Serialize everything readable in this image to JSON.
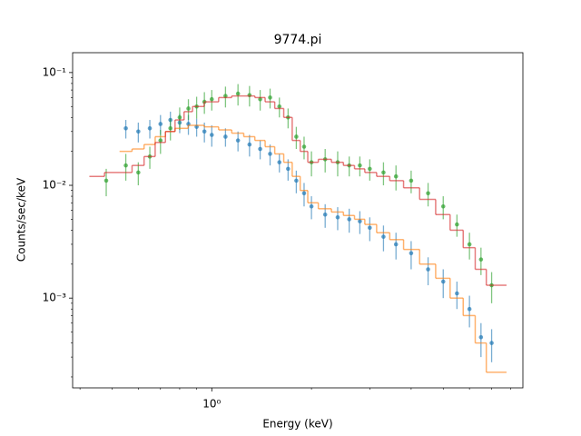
{
  "chart_data": {
    "type": "errorbar-step",
    "title": "9774.pi",
    "x_label": "Energy (keV)",
    "y_label": "Counts/sec/keV",
    "xscale": "log",
    "yscale": "log",
    "xlim": [
      0.38,
      8.7
    ],
    "ylim": [
      0.00016,
      0.15
    ],
    "xticks": [
      {
        "value": 1,
        "label": "10⁰"
      }
    ],
    "yticks": [
      {
        "value": 0.001,
        "label": "10⁻³"
      },
      {
        "value": 0.01,
        "label": "10⁻²"
      },
      {
        "value": 0.1,
        "label": "10⁻¹"
      }
    ],
    "xminorticks": [
      0.4,
      0.5,
      0.6,
      0.7,
      0.8,
      0.9,
      2,
      3,
      4,
      5,
      6,
      7,
      8
    ],
    "yminorticks": [
      0.0002,
      0.0003,
      0.0004,
      0.0005,
      0.0006,
      0.0007,
      0.0008,
      0.0009,
      0.002,
      0.003,
      0.004,
      0.005,
      0.006,
      0.007,
      0.008,
      0.009,
      0.02,
      0.03,
      0.04,
      0.05,
      0.06,
      0.07,
      0.08,
      0.09
    ],
    "series": [
      {
        "kind": "data",
        "color": "#1f77b4",
        "x": [
          0.55,
          0.6,
          0.65,
          0.7,
          0.75,
          0.8,
          0.85,
          0.9,
          0.95,
          1.0,
          1.1,
          1.2,
          1.3,
          1.4,
          1.5,
          1.6,
          1.7,
          1.8,
          1.9,
          2.0,
          2.2,
          2.4,
          2.6,
          2.8,
          3.0,
          3.3,
          3.6,
          4.0,
          4.5,
          5.0,
          5.5,
          6.0,
          6.5,
          7.0
        ],
        "values": [
          0.032,
          0.03,
          0.032,
          0.035,
          0.038,
          0.036,
          0.035,
          0.033,
          0.03,
          0.028,
          0.027,
          0.025,
          0.023,
          0.021,
          0.019,
          0.016,
          0.014,
          0.011,
          0.0085,
          0.0065,
          0.0055,
          0.0052,
          0.005,
          0.0048,
          0.0042,
          0.0035,
          0.003,
          0.0025,
          0.0018,
          0.0014,
          0.0011,
          0.0008,
          0.00045,
          0.0004
        ],
        "errors": [
          0.006,
          0.006,
          0.006,
          0.007,
          0.007,
          0.007,
          0.007,
          0.006,
          0.006,
          0.006,
          0.005,
          0.005,
          0.005,
          0.004,
          0.004,
          0.003,
          0.003,
          0.0025,
          0.002,
          0.0015,
          0.0013,
          0.0012,
          0.0012,
          0.0011,
          0.001,
          0.0009,
          0.0008,
          0.0007,
          0.0005,
          0.0004,
          0.0003,
          0.00025,
          0.00015,
          0.00013
        ]
      },
      {
        "kind": "data",
        "color": "#2ca02c",
        "x": [
          0.48,
          0.55,
          0.6,
          0.65,
          0.7,
          0.75,
          0.8,
          0.85,
          0.9,
          0.95,
          1.0,
          1.1,
          1.2,
          1.3,
          1.4,
          1.5,
          1.6,
          1.7,
          1.8,
          1.9,
          2.0,
          2.2,
          2.4,
          2.6,
          2.8,
          3.0,
          3.3,
          3.6,
          4.0,
          4.5,
          5.0,
          5.5,
          6.0,
          6.5,
          7.0
        ],
        "values": [
          0.011,
          0.015,
          0.013,
          0.018,
          0.025,
          0.032,
          0.04,
          0.048,
          0.05,
          0.055,
          0.058,
          0.062,
          0.065,
          0.063,
          0.058,
          0.06,
          0.05,
          0.04,
          0.027,
          0.022,
          0.016,
          0.017,
          0.016,
          0.015,
          0.015,
          0.014,
          0.013,
          0.012,
          0.011,
          0.0085,
          0.0065,
          0.0045,
          0.003,
          0.0022,
          0.0013
        ],
        "errors": [
          0.003,
          0.004,
          0.003,
          0.004,
          0.006,
          0.007,
          0.009,
          0.01,
          0.011,
          0.012,
          0.012,
          0.013,
          0.014,
          0.013,
          0.012,
          0.012,
          0.01,
          0.008,
          0.006,
          0.005,
          0.004,
          0.004,
          0.004,
          0.003,
          0.003,
          0.003,
          0.003,
          0.003,
          0.0025,
          0.002,
          0.0015,
          0.001,
          0.0008,
          0.0006,
          0.0004
        ]
      },
      {
        "kind": "model",
        "color": "#ff7f0e",
        "x": [
          0.55,
          0.6,
          0.65,
          0.7,
          0.75,
          0.8,
          0.9,
          1.0,
          1.1,
          1.2,
          1.3,
          1.4,
          1.5,
          1.6,
          1.7,
          1.8,
          1.9,
          2.0,
          2.2,
          2.4,
          2.6,
          2.8,
          3.0,
          3.3,
          3.6,
          4.0,
          4.5,
          5.0,
          5.5,
          6.0,
          6.5,
          7.0,
          7.5
        ],
        "values": [
          0.02,
          0.021,
          0.023,
          0.027,
          0.03,
          0.032,
          0.034,
          0.033,
          0.031,
          0.029,
          0.027,
          0.025,
          0.022,
          0.019,
          0.016,
          0.012,
          0.009,
          0.007,
          0.0062,
          0.0058,
          0.0054,
          0.005,
          0.0045,
          0.0038,
          0.0033,
          0.0027,
          0.002,
          0.0015,
          0.001,
          0.0007,
          0.0004,
          0.00022,
          0.00022
        ]
      },
      {
        "kind": "model",
        "color": "#d62728",
        "x": [
          0.45,
          0.5,
          0.55,
          0.6,
          0.65,
          0.7,
          0.75,
          0.8,
          0.85,
          0.9,
          1.0,
          1.1,
          1.2,
          1.3,
          1.4,
          1.5,
          1.6,
          1.7,
          1.8,
          1.9,
          2.0,
          2.2,
          2.4,
          2.6,
          2.8,
          3.0,
          3.3,
          3.6,
          4.0,
          4.5,
          5.0,
          5.5,
          6.0,
          6.5,
          7.0,
          7.5
        ],
        "values": [
          0.012,
          0.013,
          0.013,
          0.015,
          0.018,
          0.024,
          0.03,
          0.038,
          0.045,
          0.05,
          0.055,
          0.06,
          0.062,
          0.062,
          0.06,
          0.055,
          0.048,
          0.04,
          0.025,
          0.02,
          0.016,
          0.017,
          0.016,
          0.015,
          0.014,
          0.013,
          0.012,
          0.011,
          0.0095,
          0.0075,
          0.0055,
          0.004,
          0.0028,
          0.0018,
          0.0013,
          0.0013
        ]
      }
    ]
  }
}
